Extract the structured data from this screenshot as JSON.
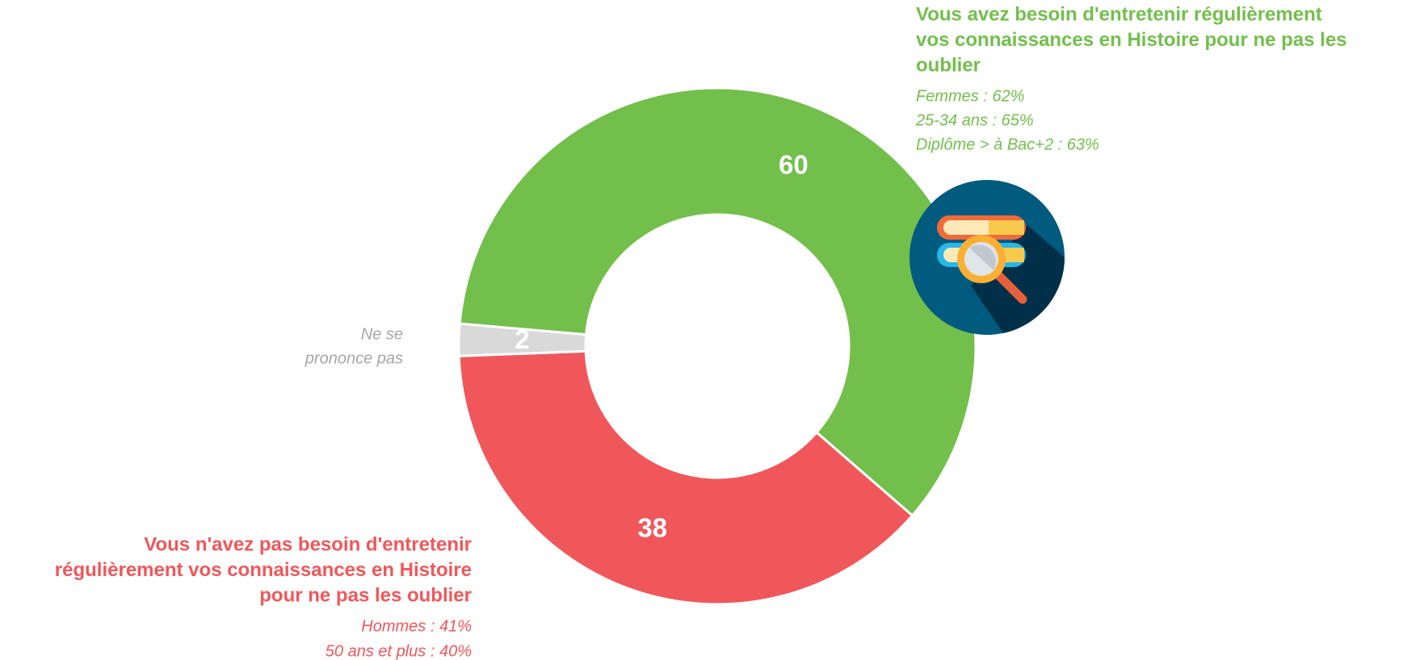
{
  "chart_data": {
    "type": "donut",
    "categories": [
      "Vous avez besoin d'entretenir régulièrement vos connaissances en Histoire pour ne pas les oublier",
      "Vous n'avez pas besoin d'entretenir régulièrement vos connaissances en Histoire pour ne pas les oublier",
      "Ne se prononce pas"
    ],
    "values": [
      60,
      38,
      2
    ],
    "colors": [
      "#72bf4b",
      "#f0575a",
      "#d9d9d9"
    ],
    "annotations": [
      {
        "title_lines": [
          "Vous avez besoin d'entretenir régulièrement",
          "vos connaissances en Histoire pour ne pas les",
          "oublier"
        ],
        "detail_lines": [
          "Femmes : 62%",
          "25-34 ans : 65%",
          "Diplôme > à Bac+2 : 63%"
        ]
      },
      {
        "title_lines": [
          "Vous n'avez pas besoin d'entretenir",
          "régulièrement vos connaissances en Histoire",
          "pour ne pas les oublier"
        ],
        "detail_lines": [
          "Hommes : 41%",
          "50 ans et plus : 40%"
        ]
      },
      {
        "title_lines": [],
        "detail_lines": [
          "Ne se",
          "prononce pas"
        ]
      }
    ]
  }
}
